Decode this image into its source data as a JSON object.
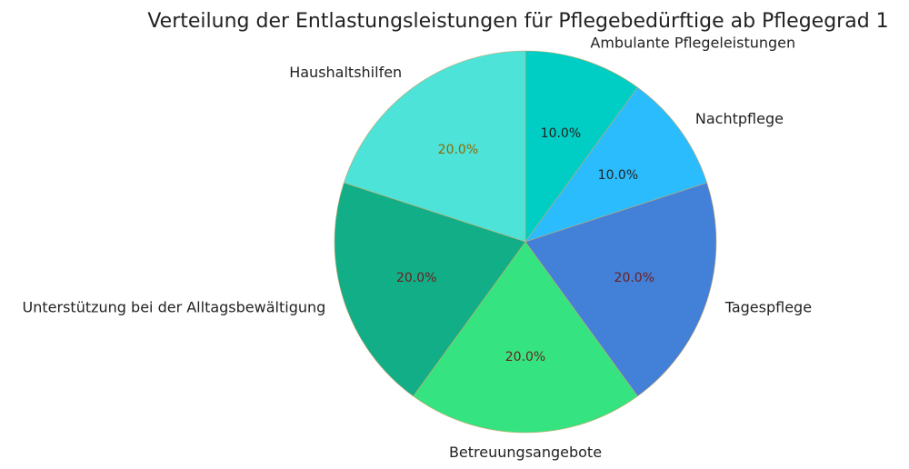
{
  "chart_data": {
    "type": "pie",
    "title": "Verteilung der Entlastungsleistungen für Pflegebedürftige ab Pflegegrad 1",
    "slices": [
      {
        "label": "Ambulante Pflegeleistungen",
        "value": 10.0,
        "pct_label": "10.0%",
        "color": "#00CEC4",
        "pct_color": "#222222"
      },
      {
        "label": "Nachtpflege",
        "value": 10.0,
        "pct_label": "10.0%",
        "color": "#2BBCFD",
        "pct_color": "#222222"
      },
      {
        "label": "Tagespflege",
        "value": 20.0,
        "pct_label": "20.0%",
        "color": "#4380D8",
        "pct_color": "#6B1F1F"
      },
      {
        "label": "Betreuungsangebote",
        "value": 20.0,
        "pct_label": "20.0%",
        "color": "#36E381",
        "pct_color": "#6B1F1F"
      },
      {
        "label": "Unterstützung bei der Alltagsbewältigung",
        "value": 20.0,
        "pct_label": "20.0%",
        "color": "#11AE87",
        "pct_color": "#6B1F1F"
      },
      {
        "label": "Haushaltshilfen",
        "value": 20.0,
        "pct_label": "20.0%",
        "color": "#4EE3D9",
        "pct_color": "#8A6A00"
      }
    ],
    "start_angle_deg": 90,
    "direction": "clockwise",
    "legend": "none"
  }
}
